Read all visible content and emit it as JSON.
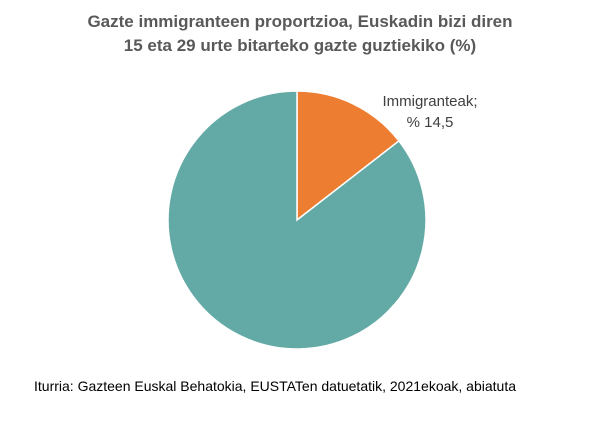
{
  "chart_data": {
    "type": "pie",
    "title_line1": "Gazte immigranteen proportzioa, Euskadin bizi diren",
    "title_line2": "15 eta 29 urte bitarteko gazte guztiekiko (%)",
    "slices": [
      {
        "name": "Immigranteak",
        "value": 14.5,
        "label": "Immigranteak;",
        "value_label": "% 14,5",
        "color": "#ED7D31"
      },
      {
        "name": "",
        "value": 85.5,
        "color": "#63AAA6"
      }
    ],
    "start_angle": "12 o'clock",
    "direction": "clockwise",
    "source": "Iturria: Gazteen Euskal Behatokia, EUSTATen datuetatik, 2021ekoak, abiatuta"
  }
}
